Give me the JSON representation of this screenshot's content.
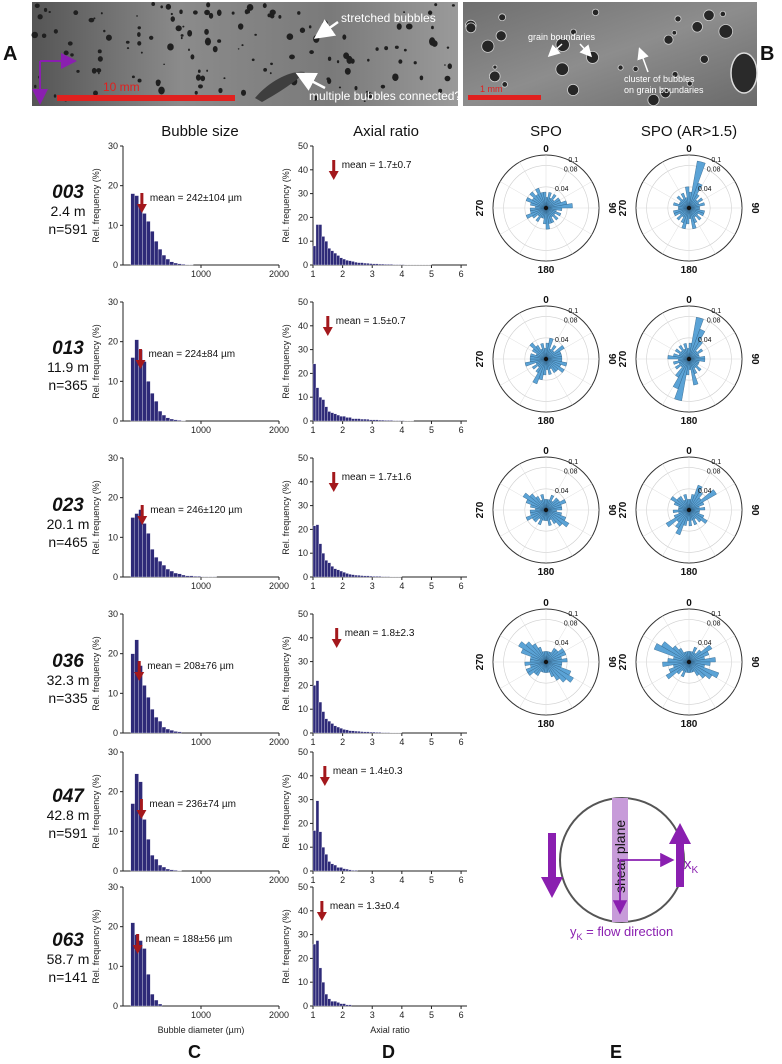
{
  "panel_labels": {
    "a": "A",
    "b": "B",
    "c": "C",
    "d": "D",
    "e": "E"
  },
  "column_titles": {
    "size": "Bubble size",
    "axial": "Axial ratio",
    "spo": "SPO",
    "spo_ar": "SPO (AR>1.5)"
  },
  "photo_a": {
    "annot_stretched": "stretched bubbles",
    "annot_multiple": "multiple bubbles connected?",
    "scale_label": "10 mm"
  },
  "photo_b": {
    "annot_grain": "grain boundaries",
    "annot_cluster_1": "cluster of bubbles",
    "annot_cluster_2": "on grain boundaries",
    "scale_label": "1 mm"
  },
  "axes": {
    "size_ylabel": "Rel. frequency (%)",
    "size_xlabel": "Bubble diameter (µm)",
    "axial_ylabel": "Rel. frequency (%)",
    "axial_xlabel": "Axial ratio",
    "size_xticks": [
      "1000",
      "2000"
    ],
    "axial_xticks": [
      "1",
      "2",
      "3",
      "4",
      "5",
      "6"
    ],
    "size_yticks": [
      "0",
      "10",
      "20",
      "30"
    ],
    "axial_yticks": [
      "0",
      "10",
      "20",
      "30",
      "40",
      "50"
    ],
    "polar_labels": {
      "top": "0",
      "right": "90",
      "bottom": "180",
      "left": "270"
    },
    "polar_rings": [
      "0.04",
      "0.08",
      "0.1"
    ]
  },
  "samples": [
    {
      "id": "003",
      "depth": "2.4 m",
      "n": "n=591",
      "size_mean_label": "mean = 242±104 µm",
      "axial_mean_label": "mean = 1.7±0.7"
    },
    {
      "id": "013",
      "depth": "11.9 m",
      "n": "n=365",
      "size_mean_label": "mean = 224±84 µm",
      "axial_mean_label": "mean = 1.5±0.7"
    },
    {
      "id": "023",
      "depth": "20.1 m",
      "n": "n=465",
      "size_mean_label": "mean = 246±120 µm",
      "axial_mean_label": "mean = 1.7±1.6"
    },
    {
      "id": "036",
      "depth": "32.3 m",
      "n": "n=335",
      "size_mean_label": "mean = 208±76 µm",
      "axial_mean_label": "mean = 1.8±2.3"
    },
    {
      "id": "047",
      "depth": "42.8 m",
      "n": "n=591",
      "size_mean_label": "mean = 236±74 µm",
      "axial_mean_label": "mean = 1.4±0.3"
    },
    {
      "id": "063",
      "depth": "58.7 m",
      "n": "n=141",
      "size_mean_label": "mean = 188±56 µm",
      "axial_mean_label": "mean = 1.3±0.4"
    }
  ],
  "schematic": {
    "shear_plane": "shear plane",
    "xk_label": "x",
    "xk_sub": "K",
    "yk_label": "y",
    "yk_sub": "K",
    "yk_text": " = flow direction"
  },
  "colors": {
    "bar": "#2e2a78",
    "arrow": "#a3181c",
    "rose": "#5ba3d6",
    "purple": "#8a1fb0",
    "scalebar": "#e0201e"
  },
  "chart_data": [
    {
      "type": "bar",
      "panel": "C",
      "sample": "003",
      "title": "Bubble size",
      "xlabel": "Bubble diameter (µm)",
      "ylabel": "Rel. frequency (%)",
      "xlim": [
        0,
        2000
      ],
      "ylim": [
        0,
        30
      ],
      "bin_width": 50,
      "bin_start": 100,
      "mean": 242,
      "values": [
        18,
        17.5,
        15,
        13,
        11,
        8.5,
        6,
        4,
        2.5,
        1.5,
        0.8,
        0.5,
        0.3,
        0.2,
        0.1,
        0.1
      ]
    },
    {
      "type": "bar",
      "panel": "C",
      "sample": "013",
      "title": "Bubble size",
      "xlabel": "Bubble diameter (µm)",
      "ylabel": "Rel. frequency (%)",
      "xlim": [
        0,
        2000
      ],
      "ylim": [
        0,
        30
      ],
      "bin_width": 50,
      "bin_start": 100,
      "mean": 224,
      "values": [
        16,
        20.5,
        18,
        15,
        10,
        7,
        5,
        2.5,
        1.5,
        0.8,
        0.5,
        0.3,
        0.2,
        0.1
      ]
    },
    {
      "type": "bar",
      "panel": "C",
      "sample": "023",
      "title": "Bubble size",
      "xlabel": "Bubble diameter (µm)",
      "ylabel": "Rel. frequency (%)",
      "xlim": [
        0,
        2000
      ],
      "ylim": [
        0,
        30
      ],
      "bin_width": 50,
      "bin_start": 100,
      "mean": 246,
      "values": [
        15,
        16,
        17,
        13.5,
        11,
        7,
        5,
        4,
        3,
        2,
        1.5,
        1,
        0.8,
        0.5,
        0.3,
        0.3,
        0.2,
        0.2,
        0.1,
        0.1,
        0.1,
        0.1
      ]
    },
    {
      "type": "bar",
      "panel": "C",
      "sample": "036",
      "title": "Bubble size",
      "xlabel": "Bubble diameter (µm)",
      "ylabel": "Rel. frequency (%)",
      "xlim": [
        0,
        2000
      ],
      "ylim": [
        0,
        30
      ],
      "bin_width": 50,
      "bin_start": 100,
      "mean": 208,
      "values": [
        20,
        23.5,
        17,
        12,
        9,
        6,
        4,
        3,
        1.5,
        1,
        0.7,
        0.4,
        0.3
      ]
    },
    {
      "type": "bar",
      "panel": "C",
      "sample": "047",
      "title": "Bubble size",
      "xlabel": "Bubble diameter (µm)",
      "ylabel": "Rel. frequency (%)",
      "xlim": [
        0,
        2000
      ],
      "ylim": [
        0,
        30
      ],
      "bin_width": 50,
      "bin_start": 100,
      "mean": 236,
      "values": [
        17,
        24.5,
        22.5,
        13,
        8,
        4,
        3,
        1.5,
        1,
        0.5,
        0.3,
        0.2,
        0.1
      ]
    },
    {
      "type": "bar",
      "panel": "C",
      "sample": "063",
      "title": "Bubble size",
      "xlabel": "Bubble diameter (µm)",
      "ylabel": "Rel. frequency (%)",
      "xlim": [
        0,
        2000
      ],
      "ylim": [
        0,
        30
      ],
      "bin_width": 50,
      "bin_start": 100,
      "mean": 188,
      "values": [
        21,
        18,
        16.5,
        14.5,
        8,
        3,
        1.5,
        0.5
      ]
    },
    {
      "type": "bar",
      "panel": "D",
      "sample": "003",
      "title": "Axial ratio",
      "xlabel": "Axial ratio",
      "ylabel": "Rel. frequency (%)",
      "xlim": [
        1,
        6.2
      ],
      "ylim": [
        0,
        50
      ],
      "bin_width": 0.1,
      "bin_start": 1.0,
      "mean": 1.7,
      "values": [
        8,
        17,
        17,
        12,
        10,
        7,
        6,
        5,
        4,
        3,
        2.5,
        2,
        1.8,
        1.5,
        1.2,
        1,
        1,
        0.8,
        0.7,
        0.6,
        0.5,
        0.5,
        0.4,
        0.4,
        0.3,
        0.3,
        0.3,
        0.2,
        0.2,
        0.2,
        0.2,
        0.1,
        0.1,
        0.1,
        0.1,
        0.1,
        0.1,
        0.1,
        0.1,
        0.1
      ]
    },
    {
      "type": "bar",
      "panel": "D",
      "sample": "013",
      "title": "Axial ratio",
      "xlabel": "Axial ratio",
      "ylabel": "Rel. frequency (%)",
      "xlim": [
        1,
        6.2
      ],
      "ylim": [
        0,
        50
      ],
      "bin_width": 0.1,
      "bin_start": 1.0,
      "mean": 1.5,
      "values": [
        24,
        14,
        10,
        9,
        6,
        4,
        3.5,
        3,
        2.5,
        2,
        2,
        1.5,
        1.5,
        1,
        1,
        1,
        0.8,
        0.8,
        0.7,
        0.5,
        0.5,
        0.5,
        0.4,
        0.4,
        0.3,
        0.3,
        0.3,
        0.2,
        0.2,
        0.2,
        0.2,
        0.1,
        0.1,
        0.1
      ]
    },
    {
      "type": "bar",
      "panel": "D",
      "sample": "023",
      "title": "Axial ratio",
      "xlabel": "Axial ratio",
      "ylabel": "Rel. frequency (%)",
      "xlim": [
        1,
        6.2
      ],
      "ylim": [
        0,
        50
      ],
      "bin_width": 0.1,
      "bin_start": 1.0,
      "mean": 1.7,
      "values": [
        21.5,
        22,
        14,
        10,
        7,
        6,
        4.5,
        3.5,
        3,
        2.5,
        2,
        1.5,
        1.2,
        1,
        0.8,
        0.7,
        0.6,
        0.5,
        0.5,
        0.4,
        0.3,
        0.3,
        0.3,
        0.2,
        0.2,
        0.2,
        0.1,
        0.1,
        0.1,
        0.1
      ]
    },
    {
      "type": "bar",
      "panel": "D",
      "sample": "036",
      "title": "Axial ratio",
      "xlabel": "Axial ratio",
      "ylabel": "Rel. frequency (%)",
      "xlim": [
        1,
        6.2
      ],
      "ylim": [
        0,
        50
      ],
      "bin_width": 0.1,
      "bin_start": 1.0,
      "mean": 1.8,
      "values": [
        20,
        22,
        13,
        9,
        6,
        5,
        4,
        3,
        2.5,
        2,
        1.5,
        1.3,
        1,
        0.9,
        0.8,
        0.7,
        0.6,
        0.5,
        0.5,
        0.4,
        0.4,
        0.3,
        0.3,
        0.2,
        0.2,
        0.2,
        0.1,
        0.1,
        0.1,
        0.1
      ]
    },
    {
      "type": "bar",
      "panel": "D",
      "sample": "047",
      "title": "Axial ratio",
      "xlabel": "Axial ratio",
      "ylabel": "Rel. frequency (%)",
      "xlim": [
        1,
        6.2
      ],
      "ylim": [
        0,
        50
      ],
      "bin_width": 0.1,
      "bin_start": 1.0,
      "mean": 1.4,
      "values": [
        17,
        29.5,
        16.5,
        10,
        7,
        4,
        3,
        2.5,
        1.5,
        1.5,
        1,
        0.8,
        0.5,
        0.3,
        0.3
      ]
    },
    {
      "type": "bar",
      "panel": "D",
      "sample": "063",
      "title": "Axial ratio",
      "xlabel": "Axial ratio",
      "ylabel": "Rel. frequency (%)",
      "xlim": [
        1,
        6.2
      ],
      "ylim": [
        0,
        50
      ],
      "bin_width": 0.1,
      "bin_start": 1.0,
      "mean": 1.3,
      "values": [
        26,
        27.5,
        16,
        10,
        5,
        3,
        2,
        2,
        1.5,
        1,
        1,
        0.5,
        0.5
      ]
    },
    {
      "type": "polar-rose",
      "panel": "SPO",
      "samples": [
        "003",
        "013",
        "023",
        "036"
      ],
      "bin_deg": 10,
      "rlim": [
        0,
        0.1
      ],
      "r_ticks": [
        0.04,
        0.08,
        0.1
      ],
      "values": [
        [
          0.02,
          0.03,
          0.02,
          0.03,
          0.02,
          0.03,
          0.03,
          0.04,
          0.05,
          0.03,
          0.02,
          0.03,
          0.02,
          0.03,
          0.02,
          0.03,
          0.03,
          0.04,
          0.03,
          0.02,
          0.02,
          0.03,
          0.02,
          0.03,
          0.04,
          0.03,
          0.03,
          0.02,
          0.03,
          0.04,
          0.03,
          0.04,
          0.03,
          0.04,
          0.03,
          0.03
        ],
        [
          0.03,
          0.04,
          0.02,
          0.03,
          0.02,
          0.04,
          0.03,
          0.03,
          0.03,
          0.03,
          0.04,
          0.03,
          0.04,
          0.03,
          0.03,
          0.02,
          0.03,
          0.02,
          0.03,
          0.04,
          0.05,
          0.03,
          0.02,
          0.03,
          0.02,
          0.04,
          0.03,
          0.03,
          0.03,
          0.02,
          0.03,
          0.04,
          0.03,
          0.02,
          0.03,
          0.02
        ],
        [
          0.02,
          0.02,
          0.03,
          0.02,
          0.03,
          0.03,
          0.04,
          0.03,
          0.03,
          0.02,
          0.03,
          0.04,
          0.05,
          0.04,
          0.03,
          0.02,
          0.03,
          0.02,
          0.02,
          0.02,
          0.03,
          0.02,
          0.03,
          0.03,
          0.04,
          0.03,
          0.03,
          0.02,
          0.03,
          0.04,
          0.05,
          0.04,
          0.03,
          0.02,
          0.03,
          0.02
        ],
        [
          0.02,
          0.02,
          0.02,
          0.03,
          0.03,
          0.04,
          0.04,
          0.03,
          0.04,
          0.03,
          0.03,
          0.05,
          0.06,
          0.05,
          0.04,
          0.03,
          0.02,
          0.02,
          0.02,
          0.02,
          0.02,
          0.03,
          0.03,
          0.04,
          0.04,
          0.03,
          0.04,
          0.03,
          0.03,
          0.05,
          0.06,
          0.05,
          0.04,
          0.03,
          0.02,
          0.02
        ]
      ]
    },
    {
      "type": "polar-rose",
      "panel": "SPO (AR>1.5)",
      "samples": [
        "003",
        "013",
        "023",
        "036"
      ],
      "bin_deg": 10,
      "rlim": [
        0,
        0.1
      ],
      "r_ticks": [
        0.04,
        0.08,
        0.1
      ],
      "values": [
        [
          0.03,
          0.09,
          0.05,
          0.03,
          0.02,
          0.03,
          0.02,
          0.03,
          0.02,
          0.02,
          0.03,
          0.03,
          0.02,
          0.03,
          0.02,
          0.03,
          0.04,
          0.02,
          0.03,
          0.04,
          0.03,
          0.02,
          0.03,
          0.02,
          0.03,
          0.03,
          0.02,
          0.02,
          0.03,
          0.02,
          0.02,
          0.03,
          0.02,
          0.03,
          0.02,
          0.04
        ],
        [
          0.03,
          0.08,
          0.06,
          0.04,
          0.02,
          0.03,
          0.02,
          0.02,
          0.03,
          0.03,
          0.02,
          0.02,
          0.02,
          0.03,
          0.02,
          0.03,
          0.05,
          0.02,
          0.03,
          0.08,
          0.06,
          0.04,
          0.02,
          0.03,
          0.02,
          0.03,
          0.02,
          0.04,
          0.03,
          0.02,
          0.03,
          0.02,
          0.03,
          0.02,
          0.03,
          0.02
        ],
        [
          0.02,
          0.03,
          0.05,
          0.04,
          0.03,
          0.06,
          0.03,
          0.02,
          0.03,
          0.02,
          0.02,
          0.03,
          0.04,
          0.03,
          0.02,
          0.03,
          0.02,
          0.03,
          0.02,
          0.03,
          0.05,
          0.04,
          0.03,
          0.05,
          0.03,
          0.02,
          0.03,
          0.02,
          0.02,
          0.03,
          0.04,
          0.03,
          0.03,
          0.02,
          0.03,
          0.02
        ],
        [
          0.02,
          0.02,
          0.03,
          0.02,
          0.03,
          0.05,
          0.04,
          0.03,
          0.05,
          0.04,
          0.03,
          0.06,
          0.05,
          0.04,
          0.03,
          0.02,
          0.02,
          0.02,
          0.02,
          0.02,
          0.03,
          0.02,
          0.03,
          0.05,
          0.04,
          0.03,
          0.05,
          0.04,
          0.03,
          0.07,
          0.06,
          0.04,
          0.03,
          0.02,
          0.02,
          0.02
        ]
      ]
    }
  ]
}
